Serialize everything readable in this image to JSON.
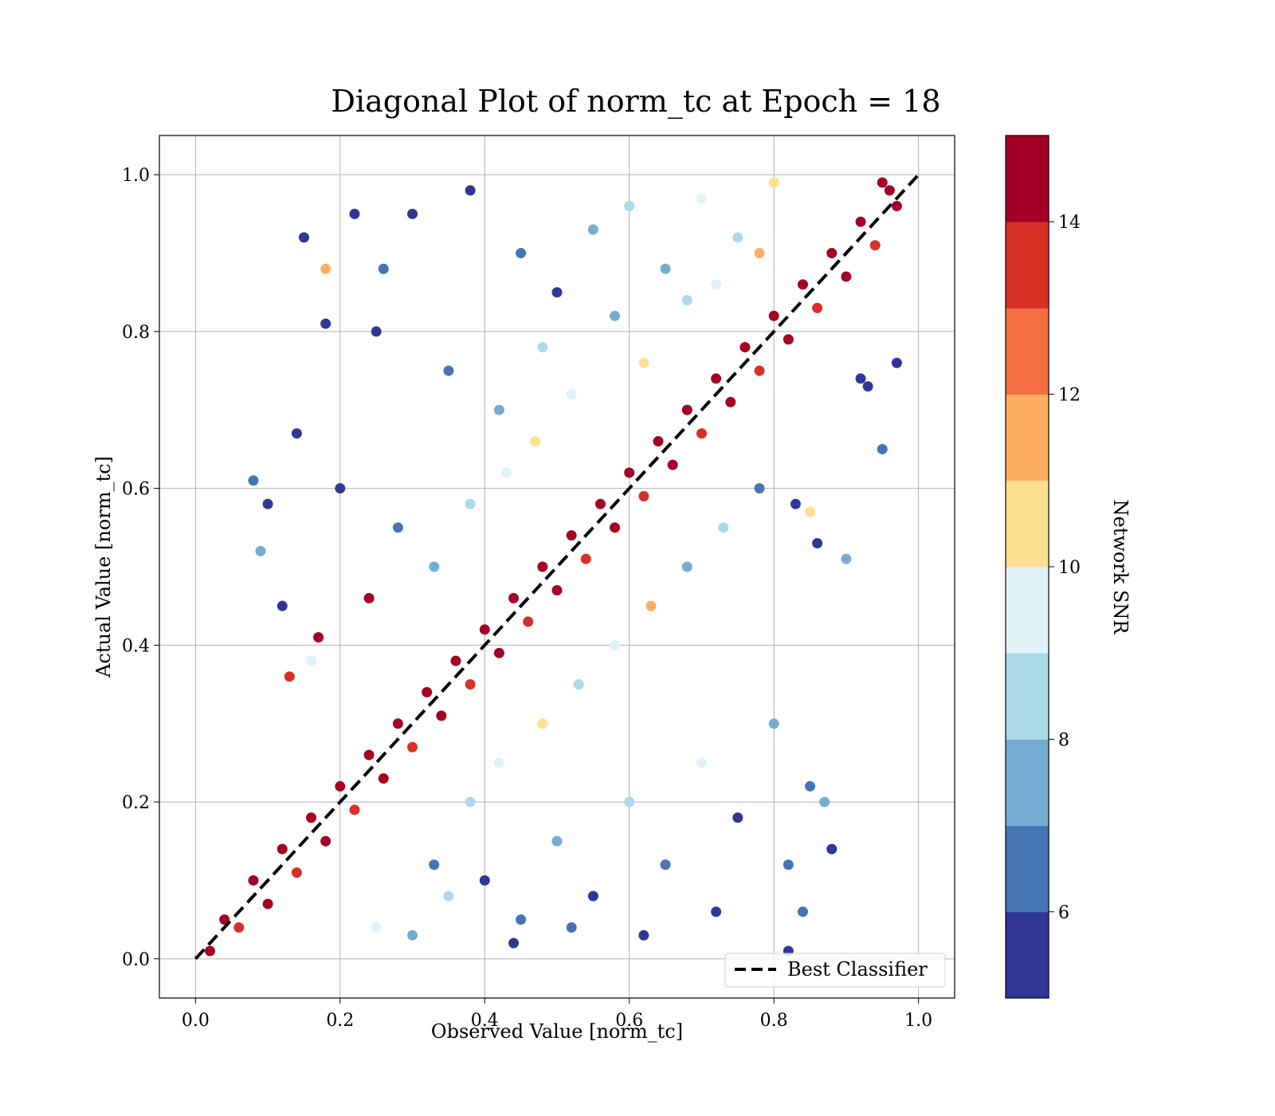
{
  "chart_data": {
    "type": "scatter",
    "title": "Diagonal Plot of norm_tc at Epoch = 18",
    "xlabel": "Observed Value [norm_tc]",
    "ylabel": "Actual Value [norm_tc]",
    "xlim": [
      -0.05,
      1.05
    ],
    "ylim": [
      -0.05,
      1.05
    ],
    "xticks": [
      "0.0",
      "0.2",
      "0.4",
      "0.6",
      "0.8",
      "1.0"
    ],
    "yticks": [
      "0.0",
      "0.2",
      "0.4",
      "0.6",
      "0.8",
      "1.0"
    ],
    "grid": true,
    "legend": {
      "position": "lower-right",
      "entries": [
        "Best Classifier"
      ]
    },
    "reference_line": {
      "name": "Best Classifier",
      "style": "dashed",
      "color": "#000000",
      "x": [
        0.0,
        1.0
      ],
      "y": [
        0.0,
        1.0
      ]
    },
    "colorbar": {
      "label": "Network SNR",
      "range": [
        5.0,
        15.0
      ],
      "ticks": [
        "6",
        "8",
        "10",
        "12",
        "14"
      ],
      "tick_values": [
        6,
        8,
        10,
        12,
        14
      ],
      "colors": [
        "#313695",
        "#4575b4",
        "#74add1",
        "#abd9e9",
        "#e0f3f8",
        "#fee090",
        "#fdae61",
        "#f46d43",
        "#d73027",
        "#a50026"
      ]
    },
    "points": [
      [
        0.02,
        0.01,
        14.5
      ],
      [
        0.04,
        0.05,
        14.2
      ],
      [
        0.06,
        0.04,
        13.8
      ],
      [
        0.08,
        0.1,
        14.6
      ],
      [
        0.1,
        0.07,
        14.1
      ],
      [
        0.12,
        0.14,
        14.7
      ],
      [
        0.14,
        0.11,
        13.5
      ],
      [
        0.16,
        0.18,
        14.8
      ],
      [
        0.18,
        0.15,
        14.3
      ],
      [
        0.2,
        0.22,
        14.6
      ],
      [
        0.22,
        0.19,
        13.9
      ],
      [
        0.24,
        0.26,
        14.5
      ],
      [
        0.26,
        0.23,
        14.2
      ],
      [
        0.28,
        0.3,
        14.8
      ],
      [
        0.3,
        0.27,
        13.7
      ],
      [
        0.32,
        0.34,
        14.6
      ],
      [
        0.34,
        0.31,
        14.1
      ],
      [
        0.36,
        0.38,
        14.7
      ],
      [
        0.38,
        0.35,
        13.6
      ],
      [
        0.4,
        0.42,
        14.5
      ],
      [
        0.42,
        0.39,
        14.2
      ],
      [
        0.44,
        0.46,
        14.8
      ],
      [
        0.46,
        0.43,
        13.9
      ],
      [
        0.48,
        0.5,
        14.6
      ],
      [
        0.5,
        0.47,
        14.3
      ],
      [
        0.52,
        0.54,
        14.7
      ],
      [
        0.54,
        0.51,
        13.8
      ],
      [
        0.56,
        0.58,
        14.5
      ],
      [
        0.58,
        0.55,
        14.1
      ],
      [
        0.6,
        0.62,
        14.8
      ],
      [
        0.62,
        0.59,
        13.6
      ],
      [
        0.64,
        0.66,
        14.6
      ],
      [
        0.66,
        0.63,
        14.2
      ],
      [
        0.68,
        0.7,
        14.7
      ],
      [
        0.7,
        0.67,
        13.9
      ],
      [
        0.72,
        0.74,
        14.5
      ],
      [
        0.74,
        0.71,
        14.3
      ],
      [
        0.76,
        0.78,
        14.8
      ],
      [
        0.78,
        0.75,
        13.7
      ],
      [
        0.8,
        0.82,
        14.6
      ],
      [
        0.82,
        0.79,
        14.1
      ],
      [
        0.84,
        0.86,
        14.7
      ],
      [
        0.86,
        0.83,
        13.8
      ],
      [
        0.88,
        0.9,
        14.5
      ],
      [
        0.9,
        0.87,
        14.2
      ],
      [
        0.92,
        0.94,
        14.8
      ],
      [
        0.94,
        0.91,
        13.6
      ],
      [
        0.96,
        0.98,
        14.6
      ],
      [
        0.97,
        0.96,
        14.3
      ],
      [
        0.95,
        0.99,
        14.5
      ],
      [
        0.3,
        0.95,
        5.3
      ],
      [
        0.38,
        0.98,
        5.6
      ],
      [
        0.45,
        0.9,
        6.4
      ],
      [
        0.5,
        0.85,
        5.8
      ],
      [
        0.55,
        0.93,
        7.5
      ],
      [
        0.6,
        0.96,
        8.2
      ],
      [
        0.65,
        0.88,
        7.9
      ],
      [
        0.7,
        0.97,
        9.6
      ],
      [
        0.75,
        0.92,
        8.7
      ],
      [
        0.8,
        0.99,
        10.4
      ],
      [
        0.25,
        0.8,
        5.5
      ],
      [
        0.35,
        0.75,
        6.7
      ],
      [
        0.42,
        0.7,
        7.7
      ],
      [
        0.48,
        0.78,
        8.3
      ],
      [
        0.52,
        0.72,
        9.1
      ],
      [
        0.58,
        0.82,
        7.4
      ],
      [
        0.62,
        0.76,
        10.3
      ],
      [
        0.68,
        0.84,
        8.6
      ],
      [
        0.72,
        0.86,
        9.3
      ],
      [
        0.78,
        0.9,
        11.2
      ],
      [
        0.2,
        0.6,
        5.4
      ],
      [
        0.28,
        0.55,
        6.2
      ],
      [
        0.33,
        0.5,
        7.1
      ],
      [
        0.38,
        0.58,
        8.4
      ],
      [
        0.43,
        0.62,
        9.7
      ],
      [
        0.47,
        0.66,
        10.8
      ],
      [
        0.15,
        0.92,
        5.9
      ],
      [
        0.18,
        0.81,
        5.7
      ],
      [
        0.22,
        0.95,
        5.6
      ],
      [
        0.26,
        0.88,
        6.1
      ],
      [
        0.4,
        0.1,
        5.4
      ],
      [
        0.45,
        0.05,
        6.3
      ],
      [
        0.5,
        0.15,
        7.2
      ],
      [
        0.55,
        0.08,
        5.8
      ],
      [
        0.6,
        0.2,
        8.1
      ],
      [
        0.65,
        0.12,
        6.9
      ],
      [
        0.7,
        0.25,
        9.2
      ],
      [
        0.75,
        0.18,
        5.6
      ],
      [
        0.8,
        0.3,
        7.7
      ],
      [
        0.85,
        0.22,
        6.2
      ],
      [
        0.38,
        0.2,
        8.6
      ],
      [
        0.42,
        0.25,
        9.4
      ],
      [
        0.48,
        0.3,
        10.5
      ],
      [
        0.53,
        0.35,
        8.8
      ],
      [
        0.58,
        0.4,
        9.9
      ],
      [
        0.63,
        0.45,
        11.1
      ],
      [
        0.68,
        0.5,
        7.6
      ],
      [
        0.73,
        0.55,
        8.3
      ],
      [
        0.78,
        0.6,
        6.4
      ],
      [
        0.83,
        0.58,
        5.7
      ],
      [
        0.3,
        0.03,
        7.8
      ],
      [
        0.35,
        0.08,
        8.9
      ],
      [
        0.25,
        0.04,
        9.5
      ],
      [
        0.33,
        0.12,
        6.6
      ],
      [
        0.44,
        0.02,
        5.3
      ],
      [
        0.52,
        0.04,
        6.1
      ],
      [
        0.62,
        0.03,
        5.9
      ],
      [
        0.72,
        0.06,
        5.5
      ],
      [
        0.82,
        0.12,
        6.0
      ],
      [
        0.88,
        0.14,
        5.4
      ],
      [
        0.12,
        0.45,
        5.8
      ],
      [
        0.1,
        0.58,
        5.5
      ],
      [
        0.08,
        0.61,
        6.2
      ],
      [
        0.14,
        0.67,
        5.6
      ],
      [
        0.16,
        0.38,
        9.8
      ],
      [
        0.17,
        0.41,
        14.9
      ],
      [
        0.13,
        0.36,
        13.2
      ],
      [
        0.09,
        0.52,
        7.4
      ],
      [
        0.24,
        0.46,
        14.8
      ],
      [
        0.18,
        0.88,
        11.9
      ],
      [
        0.92,
        0.74,
        5.4
      ],
      [
        0.95,
        0.65,
        6.1
      ],
      [
        0.9,
        0.51,
        7.3
      ],
      [
        0.93,
        0.73,
        5.7
      ],
      [
        0.97,
        0.76,
        5.3
      ],
      [
        0.85,
        0.57,
        10.5
      ],
      [
        0.86,
        0.53,
        5.5
      ],
      [
        0.87,
        0.2,
        7.6
      ],
      [
        0.84,
        0.06,
        6.4
      ],
      [
        0.82,
        0.01,
        5.2
      ]
    ]
  }
}
